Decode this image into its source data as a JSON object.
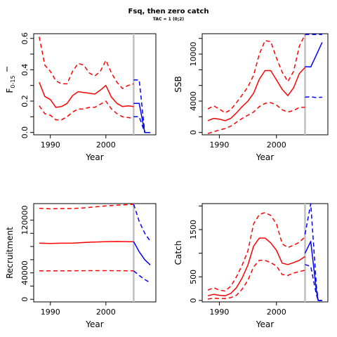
{
  "title": "Fsq, then zero catch",
  "subtitle": "TAC = 1 (0;2)",
  "colors": {
    "historical": "#ff0000",
    "projection": "#0000ff",
    "divider": "#c0c0c0",
    "axis": "#000000"
  },
  "chart_data": [
    {
      "id": "fbar",
      "type": "line",
      "xlabel": "Year",
      "ylabel_main": "F",
      "ylabel_sub": "0-15",
      "xlim": [
        1987,
        2009
      ],
      "ylim": [
        -0.015,
        0.63
      ],
      "xticks": [
        1990,
        2000
      ],
      "yticks": [
        0,
        0.2,
        0.4,
        0.6
      ],
      "ytick_labels": [
        "0.0",
        "0.2",
        "0.4",
        "0.6"
      ],
      "ytick_minor": [
        0.1,
        0.3,
        0.5
      ],
      "divider_x": 2005,
      "series": [
        {
          "role": "median-historical",
          "style": "solid",
          "color": "#ff0000",
          "x": [
            1988,
            1989,
            1990,
            1991,
            1992,
            1993,
            1994,
            1995,
            1996,
            1997,
            1998,
            1999,
            2000,
            2001,
            2002,
            2003,
            2004,
            2005
          ],
          "y": [
            0.32,
            0.23,
            0.21,
            0.16,
            0.165,
            0.185,
            0.235,
            0.26,
            0.255,
            0.25,
            0.245,
            0.27,
            0.3,
            0.225,
            0.185,
            0.165,
            0.17,
            0.165
          ]
        },
        {
          "role": "upper-historical",
          "style": "dashed",
          "color": "#ff0000",
          "x": [
            1988,
            1989,
            1990,
            1991,
            1992,
            1993,
            1994,
            1995,
            1996,
            1997,
            1998,
            1999,
            2000,
            2001,
            2002,
            2003,
            2004,
            2005
          ],
          "y": [
            0.61,
            0.43,
            0.39,
            0.33,
            0.31,
            0.31,
            0.39,
            0.44,
            0.43,
            0.38,
            0.36,
            0.39,
            0.46,
            0.38,
            0.32,
            0.28,
            0.3,
            0.31
          ]
        },
        {
          "role": "lower-historical",
          "style": "dashed",
          "color": "#ff0000",
          "x": [
            1988,
            1989,
            1990,
            1991,
            1992,
            1993,
            1994,
            1995,
            1996,
            1997,
            1998,
            1999,
            2000,
            2001,
            2002,
            2003,
            2004,
            2005
          ],
          "y": [
            0.17,
            0.12,
            0.11,
            0.08,
            0.08,
            0.1,
            0.13,
            0.15,
            0.15,
            0.16,
            0.16,
            0.18,
            0.2,
            0.15,
            0.12,
            0.1,
            0.095,
            0.09
          ]
        },
        {
          "role": "median-projection",
          "style": "solid",
          "color": "#0000ff",
          "x": [
            2005,
            2006,
            2007,
            2007.1,
            2008
          ],
          "y": [
            0.185,
            0.185,
            0.0,
            0.0,
            0.0
          ]
        },
        {
          "role": "upper-projection",
          "style": "dashed",
          "color": "#0000ff",
          "x": [
            2005,
            2006,
            2007,
            2008
          ],
          "y": [
            0.335,
            0.335,
            0.0,
            0.0
          ]
        },
        {
          "role": "lower-projection",
          "style": "dashed",
          "color": "#0000ff",
          "x": [
            2005,
            2006,
            2007,
            2008
          ],
          "y": [
            0.1,
            0.1,
            0.0,
            0.0
          ]
        }
      ]
    },
    {
      "id": "ssb",
      "type": "line",
      "xlabel": "Year",
      "ylabel_main": "SSB",
      "xlim": [
        1987,
        2009
      ],
      "ylim": [
        -300,
        12600
      ],
      "xticks": [
        1990,
        2000
      ],
      "yticks": [
        0,
        4000,
        10000
      ],
      "ytick_labels": [
        "0",
        "4000",
        "10000"
      ],
      "ytick_minor": [
        2000,
        6000,
        8000,
        12000
      ],
      "divider_x": 2005,
      "series": [
        {
          "role": "median-historical",
          "style": "solid",
          "color": "#ff0000",
          "x": [
            1988,
            1989,
            1990,
            1991,
            1992,
            1993,
            1994,
            1995,
            1996,
            1997,
            1998,
            1999,
            2000,
            2001,
            2002,
            2003,
            2004,
            2005
          ],
          "y": [
            1500,
            1800,
            1700,
            1500,
            1800,
            2500,
            3300,
            4000,
            5000,
            6800,
            7900,
            7900,
            6700,
            5500,
            4700,
            5700,
            7500,
            8300
          ]
        },
        {
          "role": "upper-historical",
          "style": "dashed",
          "color": "#ff0000",
          "x": [
            1988,
            1989,
            1990,
            1991,
            1992,
            1993,
            1994,
            1995,
            1996,
            1997,
            1998,
            1999,
            2000,
            2001,
            2002,
            2003,
            2004,
            2005
          ],
          "y": [
            3000,
            3400,
            3000,
            2500,
            2900,
            3800,
            4800,
            5800,
            7300,
            10000,
            11700,
            11600,
            9500,
            7700,
            6500,
            7800,
            11000,
            12500
          ]
        },
        {
          "role": "lower-historical",
          "style": "dashed",
          "color": "#ff0000",
          "x": [
            1988,
            1989,
            1990,
            1991,
            1992,
            1993,
            1994,
            1995,
            1996,
            1997,
            1998,
            1999,
            2000,
            2001,
            2002,
            2003,
            2004,
            2005
          ],
          "y": [
            -150,
            100,
            300,
            500,
            800,
            1300,
            1800,
            2200,
            2600,
            3300,
            3700,
            3800,
            3500,
            2900,
            2600,
            2800,
            3200,
            3200
          ]
        },
        {
          "role": "median-projection",
          "style": "solid",
          "color": "#0000ff",
          "x": [
            2005,
            2006,
            2007,
            2008
          ],
          "y": [
            8400,
            8350,
            9900,
            11500
          ]
        },
        {
          "role": "upper-projection",
          "style": "dashed",
          "color": "#0000ff",
          "x": [
            2005,
            2006,
            2007,
            2008
          ],
          "y": [
            12500,
            12500,
            12500,
            12500
          ]
        },
        {
          "role": "lower-projection",
          "style": "dashed",
          "color": "#0000ff",
          "x": [
            2005,
            2006,
            2007,
            2008
          ],
          "y": [
            4500,
            4550,
            4450,
            4500
          ]
        }
      ]
    },
    {
      "id": "recruitment",
      "type": "line",
      "xlabel": "Year",
      "ylabel_main": "Recruitment",
      "xlim": [
        1987,
        2009
      ],
      "ylim": [
        -4000,
        145000
      ],
      "xticks": [
        1990,
        2000
      ],
      "yticks": [
        0,
        40000,
        120000
      ],
      "ytick_labels": [
        "0",
        "40000",
        "120000"
      ],
      "ytick_minor": [
        20000,
        60000,
        80000,
        100000
      ],
      "divider_x": 2005,
      "series": [
        {
          "role": "median-historical",
          "style": "solid",
          "color": "#ff0000",
          "x": [
            1988,
            1990,
            1992,
            1994,
            1996,
            1998,
            2000,
            2002,
            2004,
            2005
          ],
          "y": [
            85000,
            84500,
            85000,
            85000,
            86000,
            86800,
            87300,
            87500,
            87300,
            87300
          ]
        },
        {
          "role": "upper-historical",
          "style": "dashed",
          "color": "#ff0000",
          "x": [
            1988,
            1990,
            1992,
            1994,
            1996,
            1998,
            2000,
            2002,
            2004,
            2005
          ],
          "y": [
            138000,
            137000,
            137500,
            137500,
            138500,
            140000,
            141500,
            142500,
            143500,
            144000
          ]
        },
        {
          "role": "lower-historical",
          "style": "dashed",
          "color": "#ff0000",
          "x": [
            1988,
            1990,
            1992,
            1994,
            1996,
            1998,
            2000,
            2002,
            2004,
            2005
          ],
          "y": [
            43000,
            43000,
            43100,
            43200,
            43300,
            43400,
            43400,
            43300,
            43100,
            43000
          ]
        },
        {
          "role": "median-projection",
          "style": "solid",
          "color": "#0000ff",
          "x": [
            2005,
            2006,
            2007,
            2008
          ],
          "y": [
            87300,
            72000,
            60000,
            52000
          ]
        },
        {
          "role": "upper-projection",
          "style": "dashed",
          "color": "#0000ff",
          "x": [
            2005,
            2006,
            2007,
            2008
          ],
          "y": [
            144000,
            118000,
            100000,
            88000
          ]
        },
        {
          "role": "lower-projection",
          "style": "dashed",
          "color": "#0000ff",
          "x": [
            2005,
            2006,
            2007,
            2008
          ],
          "y": [
            43000,
            36000,
            30000,
            25000
          ]
        }
      ]
    },
    {
      "id": "catch",
      "type": "line",
      "xlabel": "Year",
      "ylabel_main": "Catch",
      "xlim": [
        1987,
        2009
      ],
      "ylim": [
        -30,
        2050
      ],
      "xticks": [
        1990,
        2000
      ],
      "yticks": [
        0,
        500,
        1500
      ],
      "ytick_labels": [
        "0",
        "500",
        "1500"
      ],
      "ytick_minor": [
        1000,
        2000
      ],
      "divider_x": 2005,
      "series": [
        {
          "role": "median-historical",
          "style": "solid",
          "color": "#ff0000",
          "x": [
            1988,
            1989,
            1990,
            1991,
            1992,
            1993,
            1994,
            1995,
            1996,
            1997,
            1998,
            1999,
            2000,
            2001,
            2002,
            2003,
            2004,
            2005
          ],
          "y": [
            100,
            130,
            110,
            100,
            150,
            270,
            480,
            750,
            1150,
            1320,
            1320,
            1220,
            1060,
            790,
            760,
            800,
            850,
            930
          ]
        },
        {
          "role": "upper-historical",
          "style": "dashed",
          "color": "#ff0000",
          "x": [
            1988,
            1989,
            1990,
            1991,
            1992,
            1993,
            1994,
            1995,
            1996,
            1997,
            1998,
            1999,
            2000,
            2001,
            2002,
            2003,
            2004,
            2005
          ],
          "y": [
            220,
            270,
            220,
            200,
            300,
            500,
            750,
            1050,
            1620,
            1820,
            1860,
            1800,
            1620,
            1200,
            1120,
            1170,
            1230,
            1350
          ]
        },
        {
          "role": "lower-historical",
          "style": "dashed",
          "color": "#ff0000",
          "x": [
            1988,
            1989,
            1990,
            1991,
            1992,
            1993,
            1994,
            1995,
            1996,
            1997,
            1998,
            1999,
            2000,
            2001,
            2002,
            2003,
            2004,
            2005
          ],
          "y": [
            30,
            50,
            40,
            40,
            60,
            110,
            240,
            430,
            710,
            850,
            850,
            800,
            730,
            550,
            530,
            580,
            610,
            640
          ]
        },
        {
          "role": "median-projection",
          "style": "solid",
          "color": "#0000ff",
          "x": [
            2005,
            2006,
            2007,
            2007.3,
            2008
          ],
          "y": [
            1000,
            1250,
            200,
            0,
            0
          ]
        },
        {
          "role": "upper-projection",
          "style": "dashed",
          "color": "#0000ff",
          "x": [
            2005,
            2006,
            2007,
            2007.3,
            2008
          ],
          "y": [
            1400,
            2050,
            300,
            0,
            0
          ]
        },
        {
          "role": "lower-projection",
          "style": "dashed",
          "color": "#0000ff",
          "x": [
            2005,
            2006,
            2007,
            2007.3,
            2008
          ],
          "y": [
            760,
            720,
            120,
            0,
            0
          ]
        }
      ]
    }
  ]
}
